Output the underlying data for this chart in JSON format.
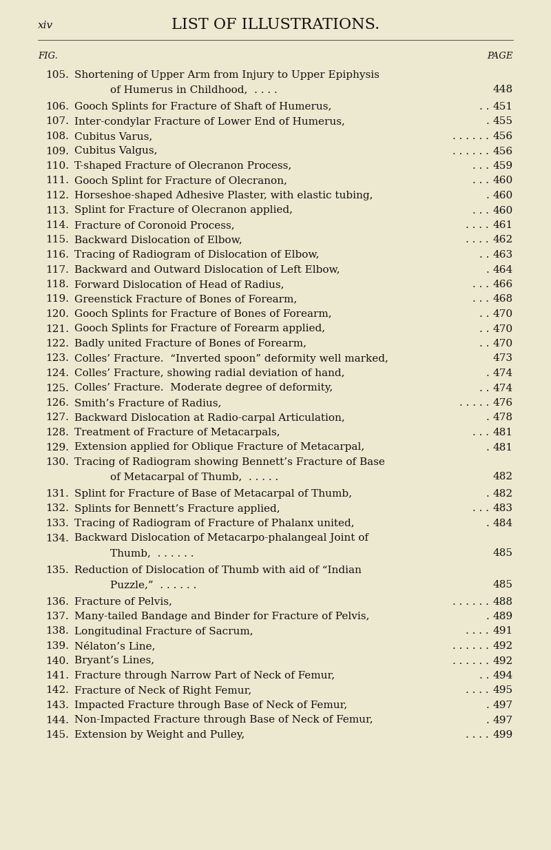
{
  "bg_color": "#ede8d0",
  "text_color": "#111111",
  "header_left": "xiv",
  "header_center": "LIST OF ILLUSTRATIONS.",
  "col_left_label": "FIG.",
  "col_right_label": "PAGE",
  "entries": [
    {
      "fig": "105.",
      "text": "Shortening of Upper Arm from Injury to Upper Epiphysis",
      "text2": "of Humerus in Childhood,",
      "dots2": ". . . .",
      "page": "448",
      "two_line": true
    },
    {
      "fig": "106.",
      "text": "Gooch Splints for Fracture of Shaft of Humerus,",
      "dots": ". .",
      "page": "451",
      "two_line": false
    },
    {
      "fig": "107.",
      "text": "Inter-condylar Fracture of Lower End of Humerus,",
      "dots": ".",
      "page": "455",
      "two_line": false
    },
    {
      "fig": "108.",
      "text": "Cubitus Varus,",
      "dots": ". . . . . .",
      "page": "456",
      "two_line": false
    },
    {
      "fig": "109.",
      "text": "Cubitus Valgus,",
      "dots": ". . . . . .",
      "page": "456",
      "two_line": false
    },
    {
      "fig": "110.",
      "text": "T-shaped Fracture of Olecranon Process,",
      "dots": ". . .",
      "page": "459",
      "two_line": false
    },
    {
      "fig": "111.",
      "text": "Gooch Splint for Fracture of Olecranon,",
      "dots": ". . .",
      "page": "460",
      "two_line": false
    },
    {
      "fig": "112.",
      "text": "Horseshoe-shaped Adhesive Plaster, with elastic tubing,",
      "dots": ".",
      "page": "460",
      "two_line": false
    },
    {
      "fig": "113.",
      "text": "Splint for Fracture of Olecranon applied,",
      "dots": ". . .",
      "page": "460",
      "two_line": false
    },
    {
      "fig": "114.",
      "text": "Fracture of Coronoid Process,",
      "dots": ". . . .",
      "page": "461",
      "two_line": false
    },
    {
      "fig": "115.",
      "text": "Backward Dislocation of Elbow,",
      "dots": ". . . .",
      "page": "462",
      "two_line": false
    },
    {
      "fig": "116.",
      "text": "Tracing of Radiogram of Dislocation of Elbow,",
      "dots": ". .",
      "page": "463",
      "two_line": false
    },
    {
      "fig": "117.",
      "text": "Backward and Outward Dislocation of Left Elbow,",
      "dots": ".",
      "page": "464",
      "two_line": false
    },
    {
      "fig": "118.",
      "text": "Forward Dislocation of Head of Radius,",
      "dots": ". . .",
      "page": "466",
      "two_line": false
    },
    {
      "fig": "119.",
      "text": "Greenstick Fracture of Bones of Forearm,",
      "dots": ". . .",
      "page": "468",
      "two_line": false
    },
    {
      "fig": "120.",
      "text": "Gooch Splints for Fracture of Bones of Forearm,",
      "dots": ". .",
      "page": "470",
      "two_line": false
    },
    {
      "fig": "121.",
      "text": "Gooch Splints for Fracture of Forearm applied,",
      "dots": ". .",
      "page": "470",
      "two_line": false
    },
    {
      "fig": "122.",
      "text": "Badly united Fracture of Bones of Forearm,",
      "dots": ". .",
      "page": "470",
      "two_line": false
    },
    {
      "fig": "123.",
      "text": "Colles’ Fracture.  “Inverted spoon” deformity well marked,",
      "dots": "",
      "page": "473",
      "two_line": false
    },
    {
      "fig": "124.",
      "text": "Colles’ Fracture, showing radial deviation of hand,",
      "dots": ".",
      "page": "474",
      "two_line": false
    },
    {
      "fig": "125.",
      "text": "Colles’ Fracture.  Moderate degree of deformity,",
      "dots": ". .",
      "page": "474",
      "two_line": false
    },
    {
      "fig": "126.",
      "text": "Smith’s Fracture of Radius,",
      "dots": ". . . . .",
      "page": "476",
      "two_line": false
    },
    {
      "fig": "127.",
      "text": "Backward Dislocation at Radio-carpal Articulation,",
      "dots": ".",
      "page": "478",
      "two_line": false
    },
    {
      "fig": "128.",
      "text": "Treatment of Fracture of Metacarpals,",
      "dots": ". . .",
      "page": "481",
      "two_line": false
    },
    {
      "fig": "129.",
      "text": "Extension applied for Oblique Fracture of Metacarpal,",
      "dots": ".",
      "page": "481",
      "two_line": false
    },
    {
      "fig": "130.",
      "text": "Tracing of Radiogram showing Bennett’s Fracture of Base",
      "text2": "of Metacarpal of Thumb,",
      "dots2": ". . . . .",
      "page": "482",
      "two_line": true
    },
    {
      "fig": "131.",
      "text": "Splint for Fracture of Base of Metacarpal of Thumb,",
      "dots": ".",
      "page": "482",
      "two_line": false
    },
    {
      "fig": "132.",
      "text": "Splints for Bennett’s Fracture applied,",
      "dots": ". . .",
      "page": "483",
      "two_line": false
    },
    {
      "fig": "133.",
      "text": "Tracing of Radiogram of Fracture of Phalanx united,",
      "dots": ".",
      "page": "484",
      "two_line": false
    },
    {
      "fig": "134.",
      "text": "Backward Dislocation of Metacarpo-phalangeal Joint of",
      "text2": "Thumb,",
      "dots2": ". . . . . .",
      "page": "485",
      "two_line": true
    },
    {
      "fig": "135.",
      "text": "Reduction of Dislocation of Thumb with aid of “Indian",
      "text2": "Puzzle,”",
      "dots2": ". . . . . .",
      "page": "485",
      "two_line": true
    },
    {
      "fig": "136.",
      "text": "Fracture of Pelvis,",
      "dots": ". . . . . .",
      "page": "488",
      "two_line": false
    },
    {
      "fig": "137.",
      "text": "Many-tailed Bandage and Binder for Fracture of Pelvis,",
      "dots": ".",
      "page": "489",
      "two_line": false
    },
    {
      "fig": "138.",
      "text": "Longitudinal Fracture of Sacrum,",
      "dots": ". . . .",
      "page": "491",
      "two_line": false
    },
    {
      "fig": "139.",
      "text": "Nélaton’s Line,",
      "dots": ". . . . . .",
      "page": "492",
      "two_line": false
    },
    {
      "fig": "140.",
      "text": "Bryant’s Lines,",
      "dots": ". . . . . .",
      "page": "492",
      "two_line": false
    },
    {
      "fig": "141.",
      "text": "Fracture through Narrow Part of Neck of Femur,",
      "dots": ". .",
      "page": "494",
      "two_line": false
    },
    {
      "fig": "142.",
      "text": "Fracture of Neck of Right Femur,",
      "dots": ". . . .",
      "page": "495",
      "two_line": false
    },
    {
      "fig": "143.",
      "text": "Impacted Fracture through Base of Neck of Femur,",
      "dots": ".",
      "page": "497",
      "two_line": false
    },
    {
      "fig": "144.",
      "text": "Non-Impacted Fracture through Base of Neck of Femur,",
      "dots": ".",
      "page": "497",
      "two_line": false
    },
    {
      "fig": "145.",
      "text": "Extension by Weight and Pulley,",
      "dots": ". . . .",
      "page": "499",
      "two_line": false
    }
  ],
  "font_size_title": 16,
  "font_size_header_small": 11,
  "font_size_label": 9.5,
  "font_size_entry": 11
}
